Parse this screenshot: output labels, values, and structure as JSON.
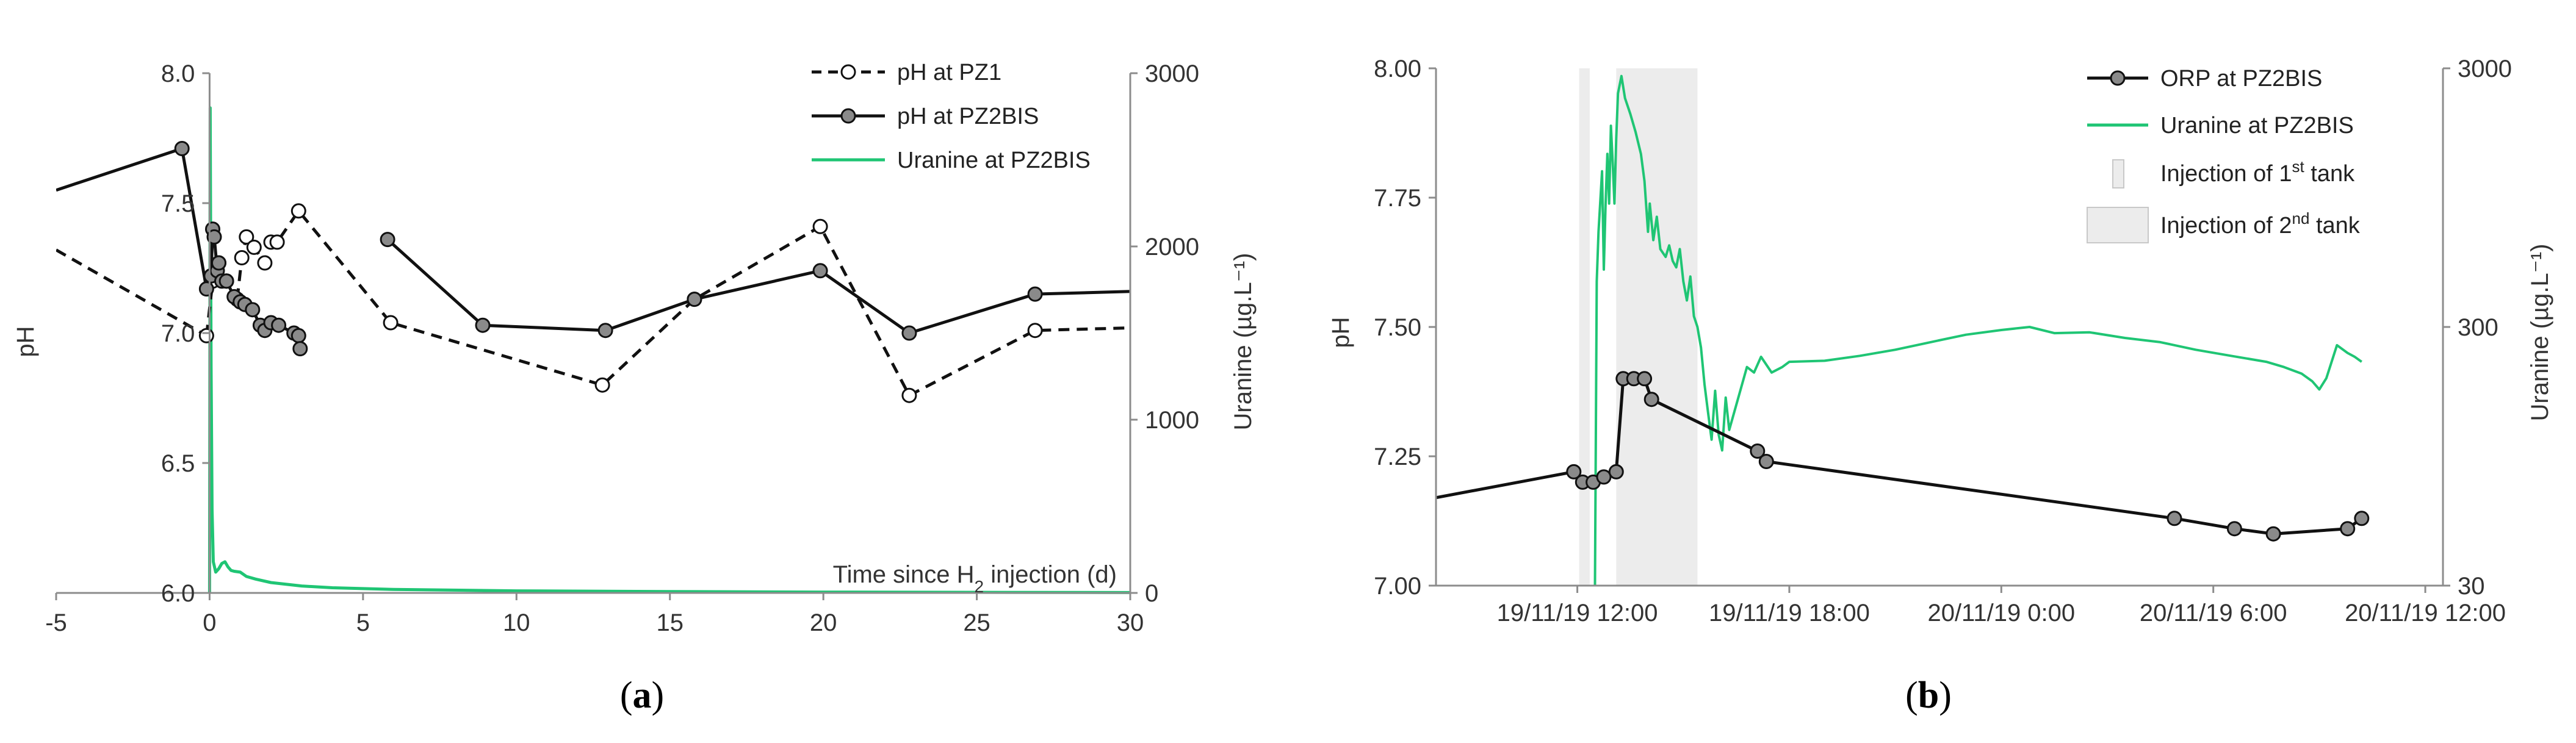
{
  "colors": {
    "uranine": "#1fc574",
    "shade": "#ececec",
    "shade_edge": "#cfcfcf",
    "marker_fill": "#8a8a8a",
    "axis": "#8c8c8c"
  },
  "chart_data": [
    {
      "id": "a",
      "panel_label": "a",
      "type": "line",
      "xlim": [
        -5,
        30
      ],
      "xticks": [
        -5,
        0,
        5,
        10,
        15,
        20,
        25,
        30
      ],
      "xtick_labels": [
        "-5",
        "0",
        "5",
        "10",
        "15",
        "20",
        "25",
        "30"
      ],
      "ylim": [
        6.0,
        8.0
      ],
      "yticks": [
        6.0,
        6.5,
        7.0,
        7.5,
        8.0
      ],
      "ytick_labels": [
        "6.0",
        "6.5",
        "7.0",
        "7.5",
        "8.0"
      ],
      "ylabel": "pH",
      "y2lim": [
        0,
        3000
      ],
      "y2ticks": [
        0,
        1000,
        2000,
        3000
      ],
      "y2tick_labels": [
        "0",
        "1000",
        "2000",
        "3000"
      ],
      "y2label": "Uranine (µg.L⁻¹)",
      "xlabel": {
        "before": "Time since H",
        "sub": "2",
        "after": " injection (d)"
      },
      "legend_position": "top-right",
      "series": [
        {
          "name": "pH at PZ1",
          "style": "dashed-open-circle",
          "axis": "left",
          "leading_line": [
            [
              -5,
              7.32
            ],
            [
              -0.1,
              6.99
            ]
          ],
          "segments": [
            [
              [
                -0.1,
                6.99
              ],
              [
                0.1,
                7.2
              ],
              [
                0.3,
                7.27
              ],
              [
                0.55,
                7.2
              ]
            ],
            [
              [
                0.9,
                7.13
              ],
              [
                1.05,
                7.29
              ],
              [
                1.2,
                7.37
              ],
              [
                1.45,
                7.33
              ],
              [
                1.8,
                7.27
              ],
              [
                2.0,
                7.35
              ],
              [
                2.2,
                7.35
              ],
              [
                2.9,
                7.47
              ],
              [
                5.9,
                7.04
              ],
              [
                12.8,
                6.8
              ],
              [
                15.8,
                7.13
              ],
              [
                19.9,
                7.41
              ],
              [
                22.8,
                6.76
              ],
              [
                26.9,
                7.01
              ],
              [
                30,
                7.02
              ]
            ]
          ]
        },
        {
          "name": "pH at PZ2BIS",
          "style": "solid-filled-circle",
          "axis": "left",
          "leading_line": [
            [
              -5,
              7.55
            ],
            [
              -0.9,
              7.71
            ]
          ],
          "segments": [
            [
              [
                -0.9,
                7.71
              ],
              [
                -0.1,
                7.17
              ],
              [
                0.05,
                7.22
              ],
              [
                0.1,
                7.4
              ],
              [
                0.15,
                7.37
              ],
              [
                0.25,
                7.24
              ],
              [
                0.3,
                7.27
              ],
              [
                0.4,
                7.2
              ],
              [
                0.55,
                7.2
              ],
              [
                0.8,
                7.14
              ],
              [
                1.0,
                7.12
              ],
              [
                1.15,
                7.11
              ],
              [
                1.4,
                7.09
              ],
              [
                1.65,
                7.03
              ],
              [
                1.8,
                7.01
              ],
              [
                2.0,
                7.04
              ],
              [
                2.25,
                7.03
              ],
              [
                2.75,
                7.0
              ],
              [
                2.9,
                6.99
              ],
              [
                2.95,
                6.94
              ]
            ],
            [
              [
                5.8,
                7.36
              ],
              [
                8.9,
                7.03
              ],
              [
                12.9,
                7.01
              ],
              [
                15.8,
                7.13
              ],
              [
                19.9,
                7.24
              ],
              [
                22.8,
                7.0
              ],
              [
                26.9,
                7.15
              ],
              [
                30,
                7.16
              ]
            ]
          ]
        },
        {
          "name": "Uranine at PZ2BIS",
          "style": "line",
          "axis": "right",
          "points": [
            [
              0,
              0
            ],
            [
              0.02,
              2800
            ],
            [
              0.05,
              1300
            ],
            [
              0.08,
              480
            ],
            [
              0.12,
              180
            ],
            [
              0.2,
              120
            ],
            [
              0.3,
              140
            ],
            [
              0.4,
              170
            ],
            [
              0.5,
              180
            ],
            [
              0.6,
              150
            ],
            [
              0.7,
              130
            ],
            [
              0.8,
              125
            ],
            [
              1.0,
              120
            ],
            [
              1.2,
              95
            ],
            [
              1.5,
              80
            ],
            [
              2.0,
              60
            ],
            [
              3.0,
              40
            ],
            [
              4.0,
              30
            ],
            [
              6.0,
              20
            ],
            [
              10,
              12
            ],
            [
              15,
              8
            ],
            [
              20,
              5
            ],
            [
              30,
              2
            ]
          ]
        }
      ]
    },
    {
      "id": "b",
      "panel_label": "b",
      "type": "line",
      "xlim": [
        9.0,
        37.5
      ],
      "xticks": [
        13,
        19,
        25,
        31,
        37
      ],
      "xtick_labels": [
        "19/11/19 12:00",
        "19/11/19 18:00",
        "20/11/19 0:00",
        "20/11/19 6:00",
        "20/11/19 12:00"
      ],
      "ylim": [
        7.0,
        8.0
      ],
      "yticks": [
        7.0,
        7.25,
        7.5,
        7.75,
        8.0
      ],
      "ytick_labels": [
        "7.00",
        "7.25",
        "7.50",
        "7.75",
        "8.00"
      ],
      "ylabel": "pH",
      "y2_scale": "log",
      "y2lim": [
        30,
        3000
      ],
      "y2ticks": [
        30,
        300,
        3000
      ],
      "y2tick_labels": [
        "30",
        "300",
        "3000"
      ],
      "y2label": "Uranine (µg.L⁻¹)",
      "legend_position": "top-right",
      "shaded_regions": [
        {
          "name": "Injection of 1st tank",
          "from": 13.05,
          "to": 13.35
        },
        {
          "name": "Injection of 2nd tank",
          "from": 14.1,
          "to": 16.4
        }
      ],
      "series": [
        {
          "name": "ORP at PZ2BIS",
          "style": "solid-filled-circle",
          "axis": "left",
          "leading_line": [
            [
              9.0,
              7.17
            ],
            [
              12.9,
              7.22
            ]
          ],
          "points": [
            [
              12.9,
              7.22
            ],
            [
              13.15,
              7.2
            ],
            [
              13.45,
              7.2
            ],
            [
              13.75,
              7.21
            ],
            [
              14.1,
              7.22
            ],
            [
              14.3,
              7.4
            ],
            [
              14.6,
              7.4
            ],
            [
              14.9,
              7.4
            ],
            [
              15.1,
              7.36
            ],
            [
              18.1,
              7.26
            ],
            [
              18.35,
              7.24
            ],
            [
              29.9,
              7.13
            ],
            [
              31.6,
              7.11
            ],
            [
              32.7,
              7.1
            ],
            [
              34.8,
              7.11
            ],
            [
              35.2,
              7.13
            ]
          ]
        },
        {
          "name": "Uranine at PZ2BIS",
          "style": "line",
          "axis": "right",
          "points": [
            [
              13.5,
              30
            ],
            [
              13.55,
              450
            ],
            [
              13.6,
              700
            ],
            [
              13.7,
              1200
            ],
            [
              13.75,
              500
            ],
            [
              13.8,
              900
            ],
            [
              13.85,
              1400
            ],
            [
              13.9,
              900
            ],
            [
              13.95,
              1800
            ],
            [
              14.0,
              1300
            ],
            [
              14.05,
              900
            ],
            [
              14.1,
              1600
            ],
            [
              14.15,
              2400
            ],
            [
              14.25,
              2800
            ],
            [
              14.35,
              2300
            ],
            [
              14.5,
              2000
            ],
            [
              14.65,
              1700
            ],
            [
              14.8,
              1400
            ],
            [
              14.9,
              1100
            ],
            [
              15.0,
              700
            ],
            [
              15.05,
              900
            ],
            [
              15.15,
              650
            ],
            [
              15.25,
              800
            ],
            [
              15.35,
              600
            ],
            [
              15.5,
              560
            ],
            [
              15.6,
              620
            ],
            [
              15.7,
              540
            ],
            [
              15.8,
              510
            ],
            [
              15.9,
              600
            ],
            [
              16.0,
              450
            ],
            [
              16.1,
              380
            ],
            [
              16.2,
              470
            ],
            [
              16.3,
              330
            ],
            [
              16.4,
              300
            ],
            [
              16.5,
              250
            ],
            [
              16.6,
              180
            ],
            [
              16.7,
              140
            ],
            [
              16.8,
              110
            ],
            [
              16.9,
              170
            ],
            [
              17.0,
              115
            ],
            [
              17.1,
              100
            ],
            [
              17.2,
              160
            ],
            [
              17.3,
              120
            ],
            [
              17.5,
              150
            ],
            [
              17.8,
              210
            ],
            [
              18.0,
              200
            ],
            [
              18.2,
              230
            ],
            [
              18.5,
              200
            ],
            [
              18.8,
              210
            ],
            [
              19.0,
              220
            ],
            [
              20.0,
              222
            ],
            [
              21.0,
              232
            ],
            [
              22.0,
              245
            ],
            [
              23.0,
              262
            ],
            [
              24.0,
              280
            ],
            [
              25.0,
              292
            ],
            [
              25.8,
              300
            ],
            [
              26.5,
              284
            ],
            [
              27.5,
              286
            ],
            [
              28.5,
              272
            ],
            [
              29.5,
              262
            ],
            [
              30.5,
              245
            ],
            [
              31.5,
              232
            ],
            [
              32.5,
              220
            ],
            [
              33.0,
              210
            ],
            [
              33.5,
              198
            ],
            [
              33.8,
              185
            ],
            [
              34.0,
              172
            ],
            [
              34.2,
              190
            ],
            [
              34.5,
              255
            ],
            [
              34.8,
              238
            ],
            [
              35.0,
              230
            ],
            [
              35.2,
              220
            ]
          ]
        }
      ],
      "legend_entries": [
        {
          "prefix": "ORP at PZ2BIS",
          "sup": "",
          "suffix": ""
        },
        {
          "prefix": "Uranine at PZ2BIS",
          "sup": "",
          "suffix": ""
        },
        {
          "prefix": "Injection of 1",
          "sup": "st",
          "suffix": " tank"
        },
        {
          "prefix": "Injection of 2",
          "sup": "nd",
          "suffix": " tank"
        }
      ]
    }
  ]
}
